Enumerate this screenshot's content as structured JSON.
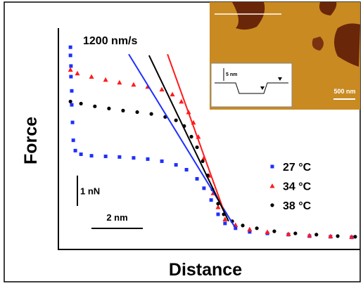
{
  "chart_data": {
    "type": "scatter",
    "x_label": "Distance",
    "y_label": "Force",
    "annotation": "1200 nm/s",
    "xlim": [
      0,
      11.7
    ],
    "ylim": [
      0,
      7.3
    ],
    "legend": "right",
    "series": [
      {
        "name": "27 °C",
        "color": "#1f2fff",
        "marker": "square",
        "x": [
          0.47,
          0.47,
          0.49,
          0.49,
          0.52,
          0.52,
          0.55,
          0.58,
          0.66,
          0.88,
          1.29,
          1.84,
          2.38,
          2.93,
          3.48,
          4.03,
          4.58,
          4.99,
          5.4,
          5.67,
          5.95,
          6.22,
          6.49,
          6.9,
          7.45,
          8.14,
          8.96,
          9.78,
          10.6,
          11.42
        ],
        "values": [
          6.67,
          6.4,
          6.05,
          5.7,
          5.23,
          4.77,
          4.19,
          3.6,
          3.26,
          3.14,
          3.09,
          3.07,
          3.05,
          3.02,
          2.98,
          2.91,
          2.79,
          2.63,
          2.33,
          2.02,
          1.63,
          1.16,
          0.86,
          0.7,
          0.58,
          0.53,
          0.49,
          0.44,
          0.42,
          0.4
        ]
      },
      {
        "name": "34 °C",
        "color": "#ff1a1a",
        "marker": "triangle",
        "x": [
          0.47,
          0.74,
          1.29,
          1.84,
          2.38,
          2.93,
          3.48,
          4.03,
          4.44,
          4.79,
          5.07,
          5.26,
          5.45,
          5.67,
          5.86,
          6.03,
          6.22,
          6.49,
          6.9,
          7.45,
          8.14,
          8.96,
          9.78,
          10.6,
          11.42
        ],
        "values": [
          5.93,
          5.81,
          5.7,
          5.6,
          5.51,
          5.44,
          5.37,
          5.28,
          5.12,
          4.88,
          4.53,
          4.19,
          3.72,
          3.02,
          2.44,
          1.86,
          1.4,
          1.0,
          0.81,
          0.67,
          0.58,
          0.51,
          0.47,
          0.44,
          0.42
        ]
      },
      {
        "name": "38 °C",
        "color": "#000000",
        "marker": "circle",
        "x": [
          0.47,
          0.88,
          1.42,
          1.97,
          2.52,
          3.07,
          3.62,
          4.16,
          4.58,
          4.9,
          5.18,
          5.4,
          5.62,
          5.81,
          6.0,
          6.22,
          6.44,
          6.77,
          7.18,
          7.73,
          8.41,
          9.23,
          10.05,
          10.88,
          11.56
        ],
        "values": [
          4.88,
          4.81,
          4.72,
          4.65,
          4.58,
          4.53,
          4.47,
          4.37,
          4.26,
          4.07,
          3.72,
          3.37,
          2.91,
          2.44,
          1.98,
          1.51,
          1.16,
          0.93,
          0.79,
          0.7,
          0.6,
          0.53,
          0.49,
          0.44,
          0.42
        ]
      }
    ],
    "fit_lines": [
      {
        "color": "#1f2fff",
        "x": [
          2.74,
          6.9
        ],
        "values": [
          6.44,
          0.7
        ]
      },
      {
        "color": "#ff1a1a",
        "x": [
          4.25,
          6.44
        ],
        "values": [
          6.44,
          1.28
        ]
      },
      {
        "color": "#000000",
        "x": [
          3.53,
          6.63
        ],
        "values": [
          6.4,
          0.93
        ]
      }
    ],
    "scale_bars": [
      {
        "axis": "y",
        "value": 1,
        "label": "1 nN"
      },
      {
        "axis": "x",
        "value": 2,
        "label": "2 nm"
      }
    ],
    "inset": {
      "scale_label": "500 nm",
      "profile_label": "5 nm"
    }
  }
}
